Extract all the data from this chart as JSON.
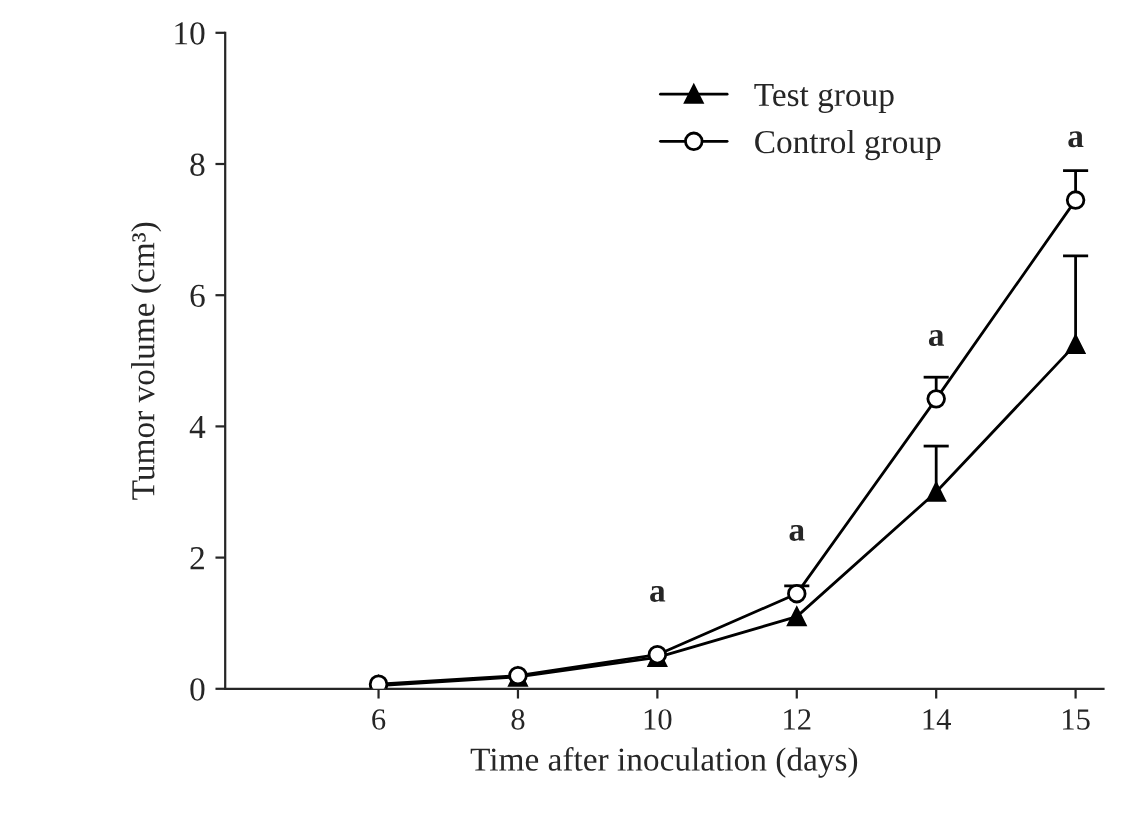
{
  "chart_data": {
    "type": "line",
    "xlabel": "Time after inoculation (days)",
    "ylabel": "Tumor volume (cm³)",
    "categories": [
      "6",
      "8",
      "10",
      "12",
      "14",
      "15"
    ],
    "series": [
      {
        "name": "Test group",
        "color": "#000000",
        "marker": "triangle",
        "values": [
          0.05,
          0.18,
          0.48,
          1.1,
          3.0,
          5.25
        ],
        "errors": [
          null,
          null,
          null,
          null,
          [
            3.0,
            3.7
          ],
          [
            5.25,
            6.6
          ]
        ]
      },
      {
        "name": "Control group",
        "color": "#000000",
        "marker": "circle",
        "values": [
          0.07,
          0.2,
          0.52,
          1.45,
          4.42,
          7.45
        ],
        "errors": [
          null,
          null,
          null,
          [
            1.45,
            1.57
          ],
          [
            4.42,
            4.75
          ],
          [
            7.45,
            7.9
          ]
        ]
      }
    ],
    "ylim": [
      0,
      10
    ],
    "yticks": [
      0,
      2,
      4,
      6,
      8,
      10
    ],
    "grid": false,
    "legend": "top right",
    "line_style": "solid",
    "annotations": [
      {
        "text": "a",
        "x": "10",
        "y": 0.52
      },
      {
        "text": "a",
        "x": "12",
        "y": 1.45
      },
      {
        "text": "a",
        "x": "14",
        "y": 4.42
      },
      {
        "text": "a",
        "x": "15",
        "y": 7.45
      }
    ]
  }
}
